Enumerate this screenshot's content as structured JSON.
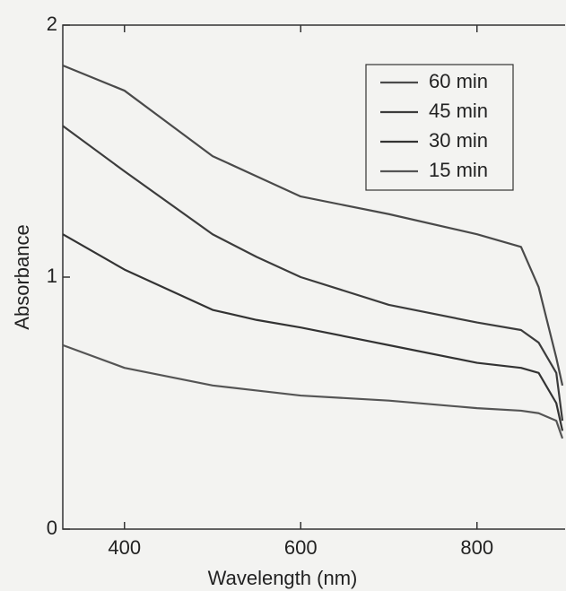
{
  "chart_data": {
    "type": "line",
    "xlabel": "Wavelength (nm)",
    "ylabel": "Absorbance",
    "x": [
      330,
      400,
      500,
      550,
      600,
      700,
      800,
      850,
      870,
      890,
      897
    ],
    "series": [
      {
        "name": "60 min",
        "color": "#4a4a4a",
        "values": [
          1.84,
          1.74,
          1.48,
          1.4,
          1.32,
          1.25,
          1.17,
          1.12,
          0.96,
          0.68,
          0.57
        ]
      },
      {
        "name": "45 min",
        "color": "#3c3c3c",
        "values": [
          1.6,
          1.42,
          1.17,
          1.08,
          1.0,
          0.89,
          0.82,
          0.79,
          0.74,
          0.62,
          0.43
        ]
      },
      {
        "name": "30 min",
        "color": "#333333",
        "values": [
          1.17,
          1.03,
          0.87,
          0.83,
          0.8,
          0.73,
          0.66,
          0.64,
          0.62,
          0.5,
          0.39
        ]
      },
      {
        "name": "15 min",
        "color": "#555555",
        "values": [
          0.73,
          0.64,
          0.57,
          0.55,
          0.53,
          0.51,
          0.48,
          0.47,
          0.46,
          0.43,
          0.36
        ]
      }
    ],
    "xlim": [
      330,
      900
    ],
    "ylim": [
      0,
      2
    ],
    "xticks": [
      400,
      600,
      800
    ],
    "yticks": [
      0,
      1,
      2
    ],
    "legend": "upper-right"
  }
}
